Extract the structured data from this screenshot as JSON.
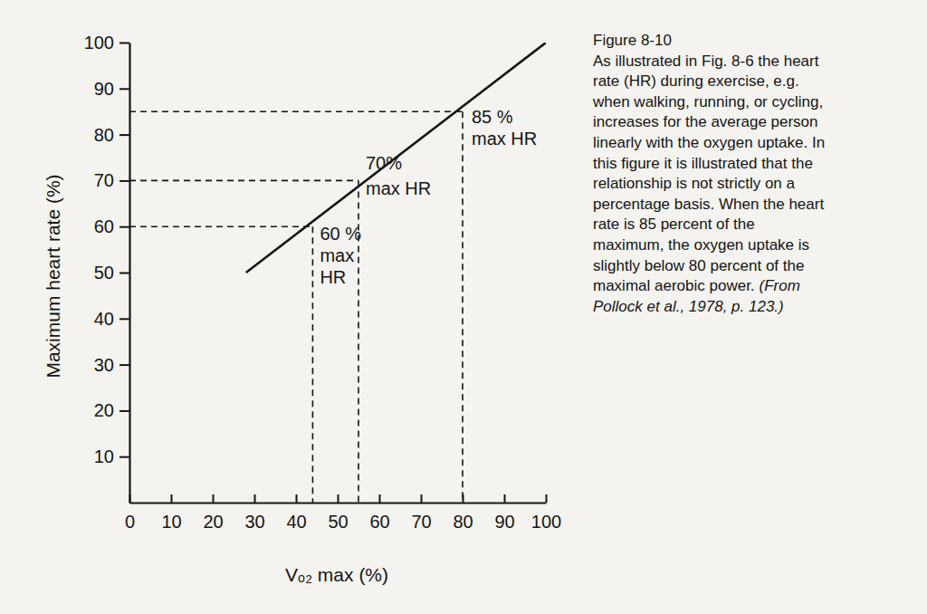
{
  "chart_data": {
    "type": "line",
    "title": "Figure 8-10",
    "caption": [
      "As illustrated in Fig. 8-6 the heart",
      "rate (HR) during exercise, e.g.",
      "when walking, running, or cycling,",
      "increases for the average person",
      "linearly with the oxygen uptake. In",
      "this figure it is illustrated that the",
      "relationship is not strictly on a",
      "percentage basis. When the heart",
      "rate is 85 percent of the",
      "maximum, the oxygen uptake is",
      "slightly below 80 percent of the",
      "maximal aerobic power."
    ],
    "source": [
      "(From",
      "Pollock et al., 1978, p. 123.)"
    ],
    "xlabel": "Vₒ₂ max (%)",
    "ylabel": "Maximum heart rate (%)",
    "x": [
      28,
      100
    ],
    "values": [
      50,
      100
    ],
    "color": "#151515",
    "xlim": [
      0,
      100
    ],
    "ylim": [
      0,
      100
    ],
    "xticks": [
      0,
      10,
      20,
      30,
      40,
      50,
      60,
      70,
      80,
      90,
      100
    ],
    "yticks": [
      10,
      20,
      30,
      40,
      50,
      60,
      70,
      80,
      90,
      100
    ],
    "grid": false,
    "annotations": [
      {
        "x": 44,
        "y": 60,
        "text": [
          "60 %",
          "max",
          "HR"
        ]
      },
      {
        "x": 55,
        "y": 70,
        "text": [
          "70%",
          "max HR"
        ]
      },
      {
        "x": 80,
        "y": 85,
        "text": [
          "85 %",
          "max HR"
        ]
      }
    ]
  }
}
